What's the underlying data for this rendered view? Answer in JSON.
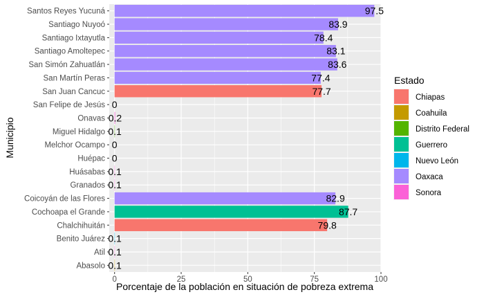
{
  "chart_data": {
    "type": "bar",
    "orientation": "horizontal",
    "xlabel": "Porcentaje de la población en situación de pobreza extrema",
    "ylabel": "Municipio",
    "xlim": [
      -2,
      100
    ],
    "x_ticks": [
      0,
      25,
      50,
      75,
      100
    ],
    "grid": true,
    "legend": {
      "title": "Estado",
      "placement": "right",
      "entries": [
        {
          "name": "Chiapas",
          "color": "#F8766D"
        },
        {
          "name": "Coahuila",
          "color": "#C49A00"
        },
        {
          "name": "Distrito Federal",
          "color": "#53B400"
        },
        {
          "name": "Guerrero",
          "color": "#00C094"
        },
        {
          "name": "Nuevo León",
          "color": "#00B6EB"
        },
        {
          "name": "Oaxaca",
          "color": "#A58AFF"
        },
        {
          "name": "Sonora",
          "color": "#FB61D7"
        }
      ]
    },
    "bars": [
      {
        "category": "Santos Reyes Yucuná",
        "value": 97.5,
        "label": "97.5",
        "state": "Oaxaca"
      },
      {
        "category": "Santiago Nuyoó",
        "value": 83.9,
        "label": "83.9",
        "state": "Oaxaca"
      },
      {
        "category": "Santiago Ixtayutla",
        "value": 78.4,
        "label": "78.4",
        "state": "Oaxaca"
      },
      {
        "category": "Santiago Amoltepec",
        "value": 83.1,
        "label": "83.1",
        "state": "Oaxaca"
      },
      {
        "category": "San Simón Zahuatlán",
        "value": 83.6,
        "label": "83.6",
        "state": "Oaxaca"
      },
      {
        "category": "San Martín Peras",
        "value": 77.4,
        "label": "77.4",
        "state": "Oaxaca"
      },
      {
        "category": "San Juan Cancuc",
        "value": 77.7,
        "label": "77.7",
        "state": "Chiapas"
      },
      {
        "category": "San Felipe de Jesús",
        "value": 0,
        "label": "0",
        "state": "Sonora"
      },
      {
        "category": "Onavas",
        "value": 0.2,
        "label": "0.2",
        "state": "Sonora"
      },
      {
        "category": "Miguel Hidalgo",
        "value": 0.1,
        "label": "0.1",
        "state": "Distrito Federal"
      },
      {
        "category": "Melchor Ocampo",
        "value": 0,
        "label": "0",
        "state": "Nuevo León"
      },
      {
        "category": "Huépac",
        "value": 0,
        "label": "0",
        "state": "Sonora"
      },
      {
        "category": "Huásabas",
        "value": 0.1,
        "label": "0.1",
        "state": "Sonora"
      },
      {
        "category": "Granados",
        "value": 0.1,
        "label": "0.1",
        "state": "Sonora"
      },
      {
        "category": "Coicoyán de las Flores",
        "value": 82.9,
        "label": "82.9",
        "state": "Oaxaca"
      },
      {
        "category": "Cochoapa el Grande",
        "value": 87.7,
        "label": "87.7",
        "state": "Guerrero"
      },
      {
        "category": "Chalchihuitán",
        "value": 79.8,
        "label": "79.8",
        "state": "Chiapas"
      },
      {
        "category": "Benito Juárez",
        "value": 0.1,
        "label": "0.1",
        "state": "Nuevo León"
      },
      {
        "category": "Atil",
        "value": 0.1,
        "label": "0.1",
        "state": "Sonora"
      },
      {
        "category": "Abasolo",
        "value": 0.1,
        "label": "0.1",
        "state": "Coahuila"
      }
    ]
  }
}
